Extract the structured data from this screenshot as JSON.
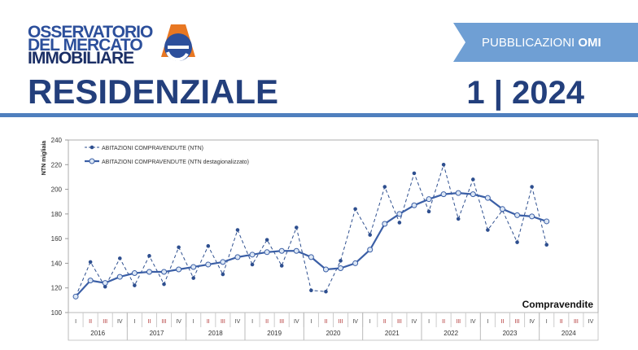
{
  "header": {
    "logo_lines": [
      "OSSERVATORIO",
      "DEL MERCATO",
      "IMMOBILIARE"
    ],
    "banner": "PUBBLICAZIONI",
    "banner_bold": "OMI",
    "title": "RESIDENZIALE",
    "issue": "1 | 2024"
  },
  "chart_data": {
    "type": "line",
    "y_label": "NTN migliaia",
    "annotation": "Compravendite",
    "categories": [
      "I",
      "II",
      "III",
      "IV",
      "I",
      "II",
      "III",
      "IV",
      "I",
      "II",
      "III",
      "IV",
      "I",
      "II",
      "III",
      "IV",
      "I",
      "II",
      "III",
      "IV",
      "I",
      "II",
      "III",
      "IV",
      "I",
      "II",
      "III",
      "IV",
      "I",
      "II",
      "III",
      "IV",
      "I",
      "II",
      "III",
      "IV"
    ],
    "years": [
      "2016",
      "2017",
      "2018",
      "2019",
      "2020",
      "2021",
      "2022",
      "2023",
      "2024"
    ],
    "series": [
      {
        "name": "ABITAZIONI COMPRAVENDUTE (NTN)",
        "color": "#2e4f8f",
        "dashed": true,
        "values": [
          113,
          141,
          121,
          144,
          122,
          146,
          123,
          153,
          128,
          154,
          131,
          167,
          139,
          159,
          138,
          169,
          118,
          117,
          142,
          184,
          163,
          202,
          173,
          213,
          182,
          220,
          176,
          208,
          167,
          183,
          157,
          202,
          155,
          null,
          null,
          null
        ]
      },
      {
        "name": "ABITAZIONI COMPRAVENDUTE (NTN destagionalizzato)",
        "color": "#3b5fa6",
        "dashed": false,
        "values": [
          113,
          126,
          124,
          129,
          132,
          133,
          133,
          135,
          137,
          139,
          141,
          145,
          147,
          149,
          150,
          150,
          145,
          135,
          136,
          140,
          151,
          172,
          180,
          187,
          192,
          196,
          197,
          196,
          193,
          184,
          179,
          178,
          174,
          null,
          null,
          null
        ]
      }
    ],
    "ylim": [
      100,
      240
    ],
    "yticks": [
      100,
      120,
      140,
      160,
      180,
      200,
      220,
      240
    ],
    "grid": false
  }
}
